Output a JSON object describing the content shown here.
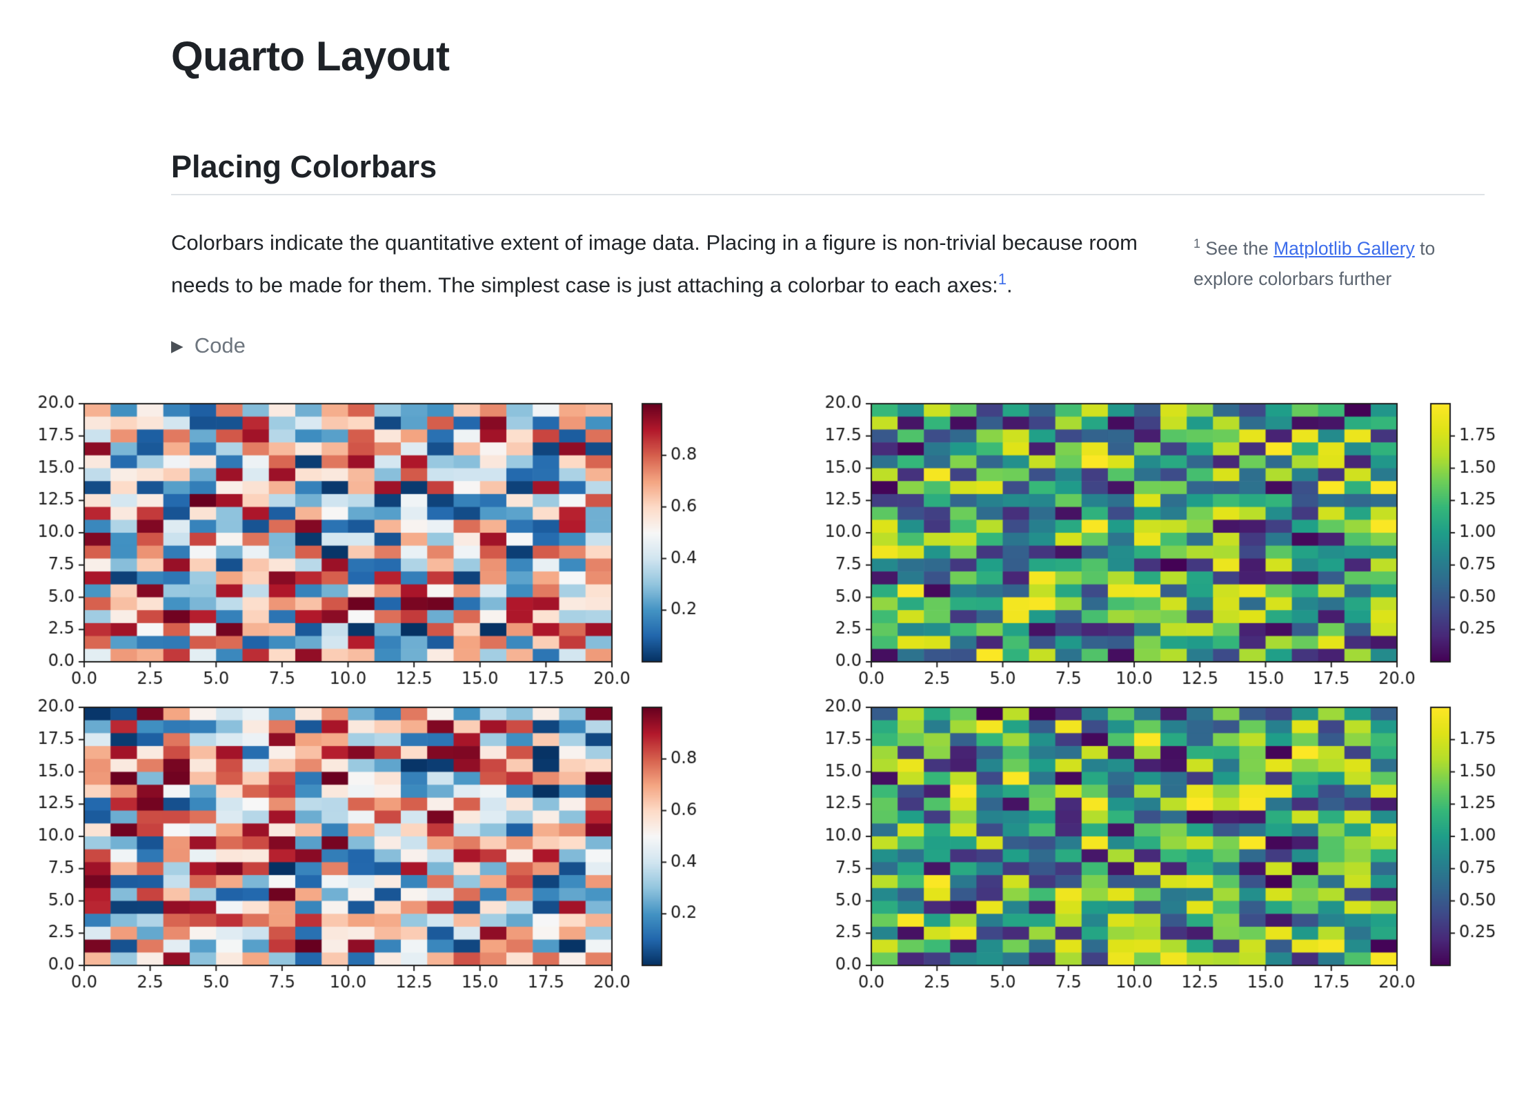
{
  "page": {
    "background": "#ffffff"
  },
  "header": {
    "title": "Quarto Layout"
  },
  "section": {
    "heading": "Placing Colorbars",
    "divider_color": "#dee2e6",
    "paragraph": {
      "text": "Colorbars indicate the quantitative extent of image data. Placing in a figure is non-trivial because room needs to be made for them. The simplest case is just attaching a colorbar to each axes:",
      "footnote_ref": "1",
      "text_after": "."
    }
  },
  "footnote": {
    "marker": "1",
    "text_before": " See the ",
    "link_text": "Matplotlib Gallery",
    "text_after": " to explore colorbars further",
    "text_color": "#5c6570",
    "link_color": "#3b6ceb"
  },
  "code_block": {
    "label": "Code",
    "collapsed": true,
    "triangle_icon": "▶"
  },
  "colors": {
    "body_text": "#212529",
    "heading_text": "#1e2227",
    "muted_text": "#6d757e",
    "link": "#3b6ceb",
    "rule": "#dee2e6",
    "plot_text": "#1a1a1a",
    "plot_spine": "#1c1c1c"
  },
  "colormaps": {
    "RdBu_r": [
      "#053061",
      "#2166ac",
      "#4393c3",
      "#92c5de",
      "#d1e5f0",
      "#f7f7f7",
      "#fddbc7",
      "#f4a582",
      "#d6604d",
      "#b2182b",
      "#67001f"
    ],
    "viridis": [
      "#440154",
      "#482878",
      "#3e4a89",
      "#31688e",
      "#26828e",
      "#1f9e89",
      "#35b779",
      "#6ece58",
      "#b5de2b",
      "#dfe318",
      "#fde725"
    ]
  },
  "chart_data": [
    {
      "id": "heatmap-top-left",
      "type": "heatmap",
      "colormap": "RdBu_r",
      "rows": 20,
      "cols": 20,
      "xlim": [
        0,
        20
      ],
      "ylim": [
        0,
        20
      ],
      "x_tick_values": [
        0,
        2.5,
        5,
        7.5,
        10,
        12.5,
        15,
        17.5,
        20
      ],
      "x_tick_labels": [
        "0.0",
        "2.5",
        "5.0",
        "7.5",
        "10.0",
        "12.5",
        "15.0",
        "17.5",
        "20.0"
      ],
      "y_tick_values": [
        0,
        2.5,
        5,
        7.5,
        10,
        12.5,
        15,
        17.5,
        20
      ],
      "y_tick_labels": [
        "0.0",
        "2.5",
        "5.0",
        "7.5",
        "10.0",
        "12.5",
        "15.0",
        "17.5",
        "20.0"
      ],
      "vmin": 0,
      "vmax": 1,
      "colorbar_tick_values": [
        0.2,
        0.4,
        0.6,
        0.8
      ],
      "colorbar_tick_labels": [
        "0.2",
        "0.4",
        "0.6",
        "0.8"
      ],
      "values_spec": {
        "distribution": "uniform_random",
        "range": [
          0,
          1
        ],
        "seed": 17
      },
      "grid": false,
      "legend": "colorbar-right"
    },
    {
      "id": "heatmap-top-right",
      "type": "heatmap",
      "colormap": "viridis",
      "rows": 20,
      "cols": 20,
      "xlim": [
        0,
        20
      ],
      "ylim": [
        0,
        20
      ],
      "x_tick_values": [
        0,
        2.5,
        5,
        7.5,
        10,
        12.5,
        15,
        17.5,
        20
      ],
      "x_tick_labels": [
        "0.0",
        "2.5",
        "5.0",
        "7.5",
        "10.0",
        "12.5",
        "15.0",
        "17.5",
        "20.0"
      ],
      "y_tick_values": [
        0,
        2.5,
        5,
        7.5,
        10,
        12.5,
        15,
        17.5,
        20
      ],
      "y_tick_labels": [
        "0.0",
        "2.5",
        "5.0",
        "7.5",
        "10.0",
        "12.5",
        "15.0",
        "17.5",
        "20.0"
      ],
      "vmin": 0,
      "vmax": 2,
      "colorbar_tick_values": [
        0.25,
        0.5,
        0.75,
        1.0,
        1.25,
        1.5,
        1.75
      ],
      "colorbar_tick_labels": [
        "0.25",
        "0.50",
        "0.75",
        "1.00",
        "1.25",
        "1.50",
        "1.75"
      ],
      "values_spec": {
        "distribution": "uniform_random",
        "range": [
          0,
          2
        ],
        "seed": 42
      },
      "grid": false,
      "legend": "colorbar-right"
    },
    {
      "id": "heatmap-bottom-left",
      "type": "heatmap",
      "colormap": "RdBu_r",
      "rows": 20,
      "cols": 20,
      "xlim": [
        0,
        20
      ],
      "ylim": [
        0,
        20
      ],
      "x_tick_values": [
        0,
        2.5,
        5,
        7.5,
        10,
        12.5,
        15,
        17.5,
        20
      ],
      "x_tick_labels": [
        "0.0",
        "2.5",
        "5.0",
        "7.5",
        "10.0",
        "12.5",
        "15.0",
        "17.5",
        "20.0"
      ],
      "y_tick_values": [
        0,
        2.5,
        5,
        7.5,
        10,
        12.5,
        15,
        17.5,
        20
      ],
      "y_tick_labels": [
        "0.0",
        "2.5",
        "5.0",
        "7.5",
        "10.0",
        "12.5",
        "15.0",
        "17.5",
        "20.0"
      ],
      "vmin": 0,
      "vmax": 1,
      "colorbar_tick_values": [
        0.2,
        0.4,
        0.6,
        0.8
      ],
      "colorbar_tick_labels": [
        "0.2",
        "0.4",
        "0.6",
        "0.8"
      ],
      "values_spec": {
        "distribution": "uniform_random",
        "range": [
          0,
          1
        ],
        "seed": 7
      },
      "grid": false,
      "legend": "colorbar-right"
    },
    {
      "id": "heatmap-bottom-right",
      "type": "heatmap",
      "colormap": "viridis",
      "rows": 20,
      "cols": 20,
      "xlim": [
        0,
        20
      ],
      "ylim": [
        0,
        20
      ],
      "x_tick_values": [
        0,
        2.5,
        5,
        7.5,
        10,
        12.5,
        15,
        17.5,
        20
      ],
      "x_tick_labels": [
        "0.0",
        "2.5",
        "5.0",
        "7.5",
        "10.0",
        "12.5",
        "15.0",
        "17.5",
        "20.0"
      ],
      "y_tick_values": [
        0,
        2.5,
        5,
        7.5,
        10,
        12.5,
        15,
        17.5,
        20
      ],
      "y_tick_labels": [
        "0.0",
        "2.5",
        "5.0",
        "7.5",
        "10.0",
        "12.5",
        "15.0",
        "17.5",
        "20.0"
      ],
      "vmin": 0,
      "vmax": 2,
      "colorbar_tick_values": [
        0.25,
        0.5,
        0.75,
        1.0,
        1.25,
        1.5,
        1.75
      ],
      "colorbar_tick_labels": [
        "0.25",
        "0.50",
        "0.75",
        "1.00",
        "1.25",
        "1.50",
        "1.75"
      ],
      "values_spec": {
        "distribution": "uniform_random",
        "range": [
          0,
          2
        ],
        "seed": 99
      },
      "grid": false,
      "legend": "colorbar-right"
    }
  ]
}
